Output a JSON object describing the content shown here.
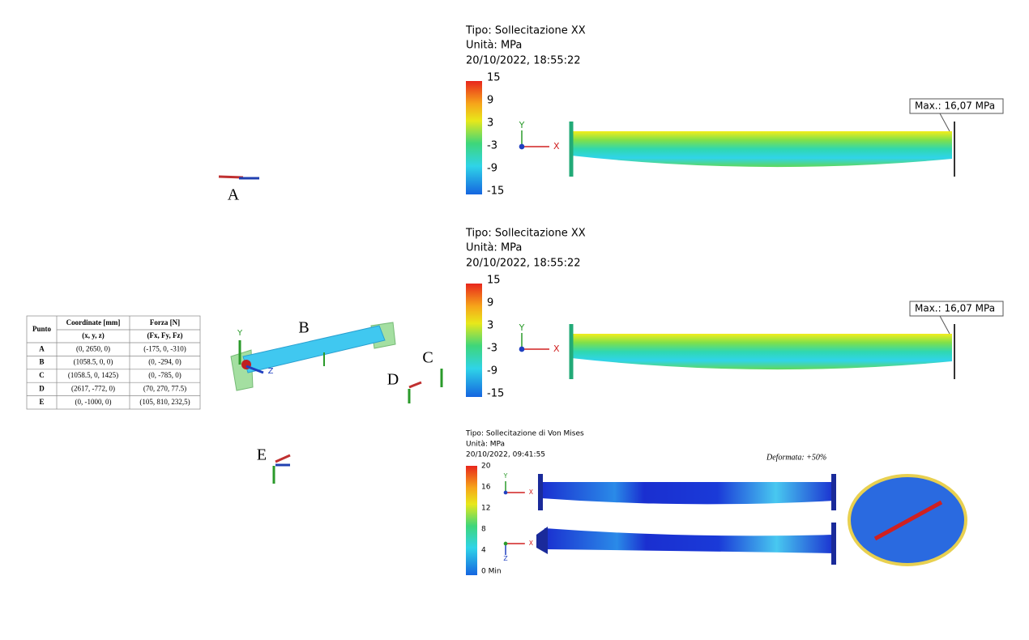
{
  "table": {
    "headers": [
      "Punto",
      "Coordinate [mm]",
      "Forza [N]"
    ],
    "subheaders": [
      "(x, y, z)",
      "(Fx, Fy, Fz)"
    ],
    "rows": [
      [
        "A",
        "(0, 2650, 0)",
        "(-175, 0, -310)"
      ],
      [
        "B",
        "(1058.5, 0, 0)",
        "(0, -294, 0)"
      ],
      [
        "C",
        "(1058.5, 0, 1425)",
        "(0, -785, 0)"
      ],
      [
        "D",
        "(2617, -772, 0)",
        "(70, 270, 77.5)"
      ],
      [
        "E",
        "(0, -1000, 0)",
        "(105, 810, 232,5)"
      ]
    ]
  },
  "points": [
    "A",
    "B",
    "C",
    "D",
    "E"
  ],
  "model_axes": [
    "Y",
    "Z"
  ],
  "panels": [
    {
      "type": "Tipo: Sollecitazione XX",
      "unit": "Unità: MPa",
      "date": "20/10/2022, 18:55:22",
      "legend": [
        "15",
        "9",
        "3",
        "-3",
        "-9",
        "-15"
      ],
      "max": "Max.: 16,07 MPa",
      "axes": [
        "Y",
        "X"
      ]
    },
    {
      "type": "Tipo: Sollecitazione XX",
      "unit": "Unità: MPa",
      "date": "20/10/2022, 18:55:22",
      "legend": [
        "15",
        "9",
        "3",
        "-3",
        "-9",
        "-15"
      ],
      "max": "Max.: 16,07 MPa",
      "axes": [
        "Y",
        "X"
      ]
    },
    {
      "type": "Tipo: Sollecitazione di Von Mises",
      "unit": "Unità: MPa",
      "date": "20/10/2022, 09:41:55",
      "legend": [
        "20",
        "16",
        "12",
        "8",
        "4",
        "0 Min"
      ],
      "axes": [
        "Y",
        "X",
        "X",
        "Z"
      ],
      "note": "Deformata: +50%"
    }
  ]
}
